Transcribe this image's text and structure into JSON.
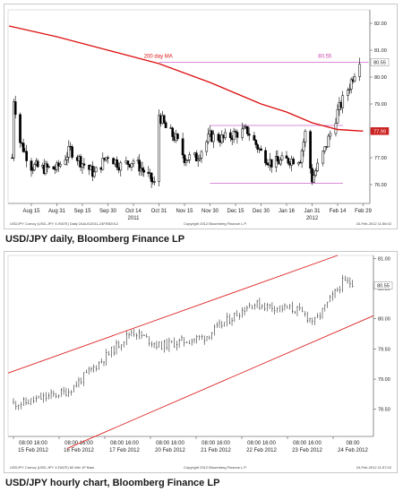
{
  "captions": {
    "daily": "USD/JPY daily, Bloomberg Finance LP",
    "hourly": "USD/JPY hourly chart, Bloomberg Finance LP"
  },
  "colors": {
    "candles": "#000000",
    "moving_average": "#dd1111",
    "channel_lines": "#dd2222",
    "range_lines": "#cc66cc",
    "price_tag_bg": "#cc2222",
    "text_pink": "#cc44aa"
  },
  "chart_data": [
    {
      "type": "line",
      "name": "daily",
      "y_ticks": [
        76,
        77,
        78,
        79,
        80,
        81,
        82
      ],
      "ylim": [
        75.3,
        82.5
      ],
      "x_ticks": [
        "Aug 15",
        "Aug 31",
        "Sep 15",
        "Sep 30",
        "Oct 14",
        "Oct 31",
        "Nov 15",
        "Nov 30",
        "Dec 15",
        "Dec 30",
        "Jan 16",
        "Jan 31",
        "Feb 14",
        "Feb 29"
      ],
      "x_sub_labels": [
        {
          "text": "2011",
          "under": "Oct 14"
        },
        {
          "text": "2012",
          "under": "Jan 31"
        }
      ],
      "ma_label": "200 day MA",
      "range_label": "80.55",
      "price_tags": [
        {
          "value": 80.55,
          "text": "80.55"
        },
        {
          "value": 77.99,
          "text": "77.99"
        }
      ],
      "horizontal_lines": [
        {
          "value": 80.55,
          "from": "Oct 31",
          "to": "Feb 29"
        },
        {
          "value": 78.2,
          "from": "Nov 30",
          "to": "Feb 14"
        },
        {
          "value": 76.05,
          "from": "Nov 30",
          "to": "Feb 14"
        }
      ],
      "close_path": [
        [
          "Aug 3",
          77.0
        ],
        [
          "Aug 4",
          79.2
        ],
        [
          "Aug 8",
          77.6
        ],
        [
          "Aug 15",
          76.7
        ],
        [
          "Aug 22",
          76.6
        ],
        [
          "Aug 31",
          76.6
        ],
        [
          "Sep 8",
          77.3
        ],
        [
          "Sep 15",
          76.8
        ],
        [
          "Sep 22",
          76.4
        ],
        [
          "Sep 30",
          77.1
        ],
        [
          "Oct 7",
          76.7
        ],
        [
          "Oct 14",
          76.9
        ],
        [
          "Oct 21",
          76.5
        ],
        [
          "Oct 28",
          76.0
        ],
        [
          "Oct 31",
          78.6
        ],
        [
          "Nov 4",
          78.1
        ],
        [
          "Nov 10",
          77.7
        ],
        [
          "Nov 15",
          77.0
        ],
        [
          "Nov 22",
          77.0
        ],
        [
          "Nov 30",
          77.8
        ],
        [
          "Dec 8",
          77.7
        ],
        [
          "Dec 15",
          77.9
        ],
        [
          "Dec 22",
          78.0
        ],
        [
          "Dec 30",
          77.2
        ],
        [
          "Jan 6",
          76.8
        ],
        [
          "Jan 16",
          76.9
        ],
        [
          "Jan 24",
          77.0
        ],
        [
          "Jan 27",
          77.9
        ],
        [
          "Jan 31",
          76.2
        ],
        [
          "Feb 7",
          77.3
        ],
        [
          "Feb 14",
          78.7
        ],
        [
          "Feb 21",
          79.7
        ],
        [
          "Feb 27",
          80.7
        ]
      ],
      "moving_average_path": [
        [
          "Aug 1",
          81.9
        ],
        [
          "Aug 31",
          81.5
        ],
        [
          "Sep 30",
          81.0
        ],
        [
          "Oct 31",
          80.5
        ],
        [
          "Nov 30",
          79.8
        ],
        [
          "Dec 30",
          79.0
        ],
        [
          "Jan 16",
          78.7
        ],
        [
          "Jan 31",
          78.3
        ],
        [
          "Feb 14",
          78.05
        ],
        [
          "Feb 29",
          77.99
        ]
      ]
    },
    {
      "type": "line",
      "name": "hourly",
      "y_ticks": [
        78.5,
        79,
        79.5,
        80,
        80.5,
        81
      ],
      "ylim": [
        78.05,
        81.05
      ],
      "x_ticks": [
        {
          "time": "08:00 16:00",
          "date": "15 Feb 2012"
        },
        {
          "time": "08:00 16:00",
          "date": "16 Feb 2012"
        },
        {
          "time": "08:00 16:00",
          "date": "17 Feb 2012"
        },
        {
          "time": "08:00 16:00",
          "date": "20 Feb 2012"
        },
        {
          "time": "08:00 16:00",
          "date": "21 Feb 2012"
        },
        {
          "time": "08:00 16:00",
          "date": "22 Feb 2012"
        },
        {
          "time": "08:00 16:00",
          "date": "23 Feb 2012"
        },
        {
          "time": "08:00",
          "date": "24 Feb 2012"
        }
      ],
      "price_tags": [
        {
          "value": 80.55,
          "text": "80.55"
        }
      ],
      "channel": {
        "upper": {
          "start": 79.1,
          "end": 81.05
        },
        "lower": {
          "start": 77.85,
          "end": 80.05
        }
      },
      "close_path": [
        [
          "15 Feb 2012",
          78.6
        ],
        [
          "16 Feb 2012",
          78.8
        ],
        [
          "17 Feb 2012",
          79.5
        ],
        [
          "17 Feb 2012 pm",
          79.8
        ],
        [
          "20 Feb 2012",
          79.55
        ],
        [
          "21 Feb 2012",
          79.7
        ],
        [
          "22 Feb 2012",
          80.25
        ],
        [
          "23 Feb 2012",
          80.15
        ],
        [
          "23 Feb 2012 pm",
          79.95
        ],
        [
          "24 Feb 2012",
          80.6
        ]
      ]
    }
  ],
  "footers": {
    "daily_left": "USDJPY Curncy (USD-JPY X-RATE) Daily 24AUG2011-24FEB2012",
    "daily_mid": "Copyright 2012 Bloomberg Finance L.P.",
    "daily_right": "24-Feb-2012 11:56:02",
    "hourly_left": "USDJPY Curncy (USD-JPY X-RATE) 60 Min 1P Bars",
    "hourly_mid": "Copyright 2012 Bloomberg Finance L.P.",
    "hourly_right": "24-Feb-2012 11:57:02"
  }
}
